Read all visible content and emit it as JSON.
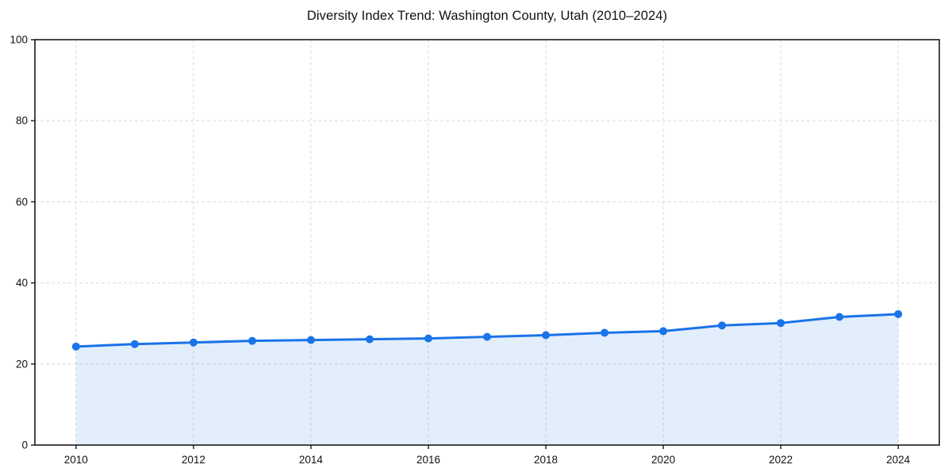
{
  "chart_data": {
    "type": "line",
    "title": "Diversity Index Trend: Washington County, Utah (2010–2024)",
    "series_name": "Diversity Index",
    "x": [
      2010,
      2011,
      2012,
      2013,
      2014,
      2015,
      2016,
      2017,
      2018,
      2019,
      2020,
      2021,
      2022,
      2023,
      2024
    ],
    "values": [
      24.3,
      24.9,
      25.3,
      25.7,
      25.9,
      26.1,
      26.3,
      26.7,
      27.1,
      27.7,
      28.1,
      29.5,
      30.1,
      31.6,
      32.3
    ],
    "xlabel": "",
    "ylabel": "",
    "xlim": [
      2009.3,
      2024.7
    ],
    "ylim": [
      0,
      100
    ],
    "xticks": [
      2010,
      2012,
      2014,
      2016,
      2018,
      2020,
      2022,
      2024
    ],
    "yticks": [
      0,
      20,
      40,
      60,
      80,
      100
    ],
    "grid": true,
    "grid_style": "dashed",
    "legend_position": "none",
    "area_fill": true,
    "markers": true,
    "colors": {
      "line": "#1a73e8",
      "marker": "#1a73e8",
      "area": "rgba(26,115,232,0.12)",
      "grid": "#dcdcdc",
      "axis": "#1a1a1a",
      "tick_text": "#111111",
      "background": "#ffffff"
    }
  }
}
